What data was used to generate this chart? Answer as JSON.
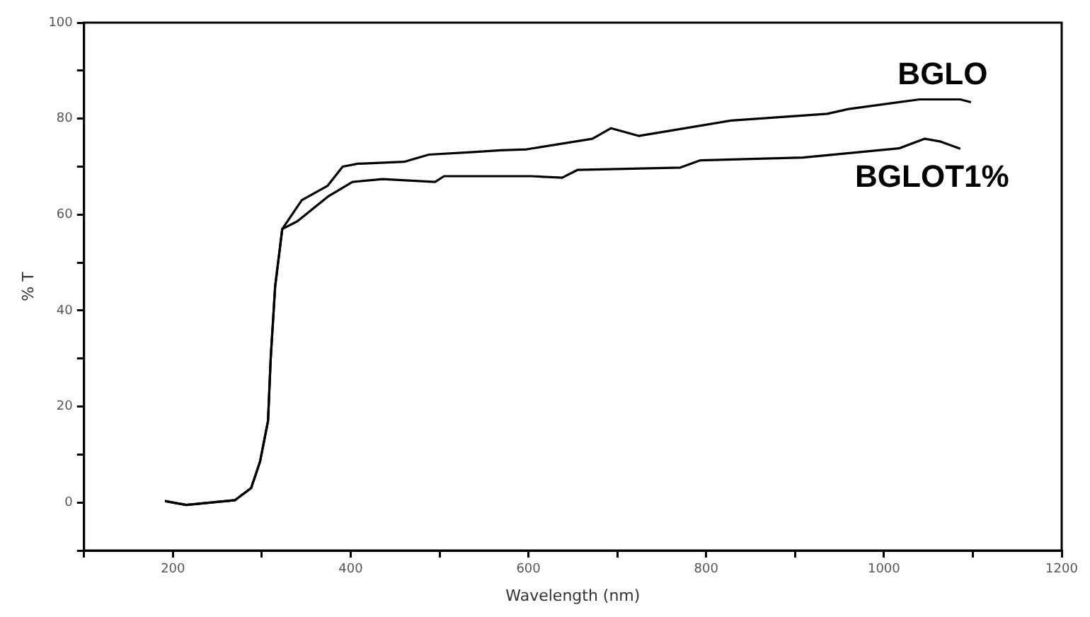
{
  "chart_data": {
    "type": "line",
    "xlabel": "Wavelength (nm)",
    "ylabel": "% T",
    "xlim": [
      100,
      1200
    ],
    "xticks": [
      {
        "value": 100,
        "label": null
      },
      200,
      {
        "value": 300,
        "label": null
      },
      400,
      {
        "value": 500,
        "label": null
      },
      600,
      {
        "value": 700,
        "label": null
      },
      800,
      {
        "value": 900,
        "label": null
      },
      1000,
      {
        "value": 1100,
        "label": null
      },
      1200
    ],
    "ylim": [
      -10,
      100
    ],
    "yticks": [
      {
        "value": -10,
        "label": null
      },
      0,
      {
        "value": 10,
        "label": null
      },
      20,
      {
        "value": 30,
        "label": null
      },
      40,
      {
        "value": 50,
        "label": null
      },
      60,
      {
        "value": 70,
        "label": null
      },
      80,
      {
        "value": 90,
        "label": null
      },
      100
    ],
    "grid": false,
    "legend": false,
    "marker": "none",
    "line_style": "solid",
    "series": [
      {
        "name": "BGLO",
        "color": "#000000",
        "x": [
          191,
          215,
          270,
          288,
          298,
          307,
          310,
          315,
          323,
          345,
          374,
          391,
          408,
          460,
          488,
          535,
          569,
          598,
          672,
          693,
          724,
          828,
          936,
          960,
          1040,
          1086,
          1098
        ],
        "values": [
          0.3,
          -0.5,
          0.5,
          3,
          8.5,
          17,
          30,
          45,
          57,
          63,
          66,
          70,
          70.6,
          71,
          72.5,
          73,
          73.4,
          73.6,
          75.8,
          78,
          76.4,
          79.6,
          81,
          82,
          84,
          84,
          83.4
        ]
      },
      {
        "name": "BGLOT1%",
        "color": "#000000",
        "x": [
          191,
          215,
          270,
          288,
          298,
          307,
          310,
          315,
          323,
          340,
          374,
          402,
          436,
          495,
          505,
          603,
          638,
          655,
          771,
          793,
          909,
          1017,
          1046,
          1064,
          1086
        ],
        "values": [
          0.3,
          -0.5,
          0.5,
          3,
          8.5,
          17,
          30,
          45,
          57,
          58.6,
          63.7,
          66.8,
          67.4,
          66.8,
          68,
          68,
          67.7,
          69.3,
          69.8,
          71.3,
          71.9,
          73.8,
          75.8,
          75.2,
          73.7
        ]
      }
    ]
  }
}
